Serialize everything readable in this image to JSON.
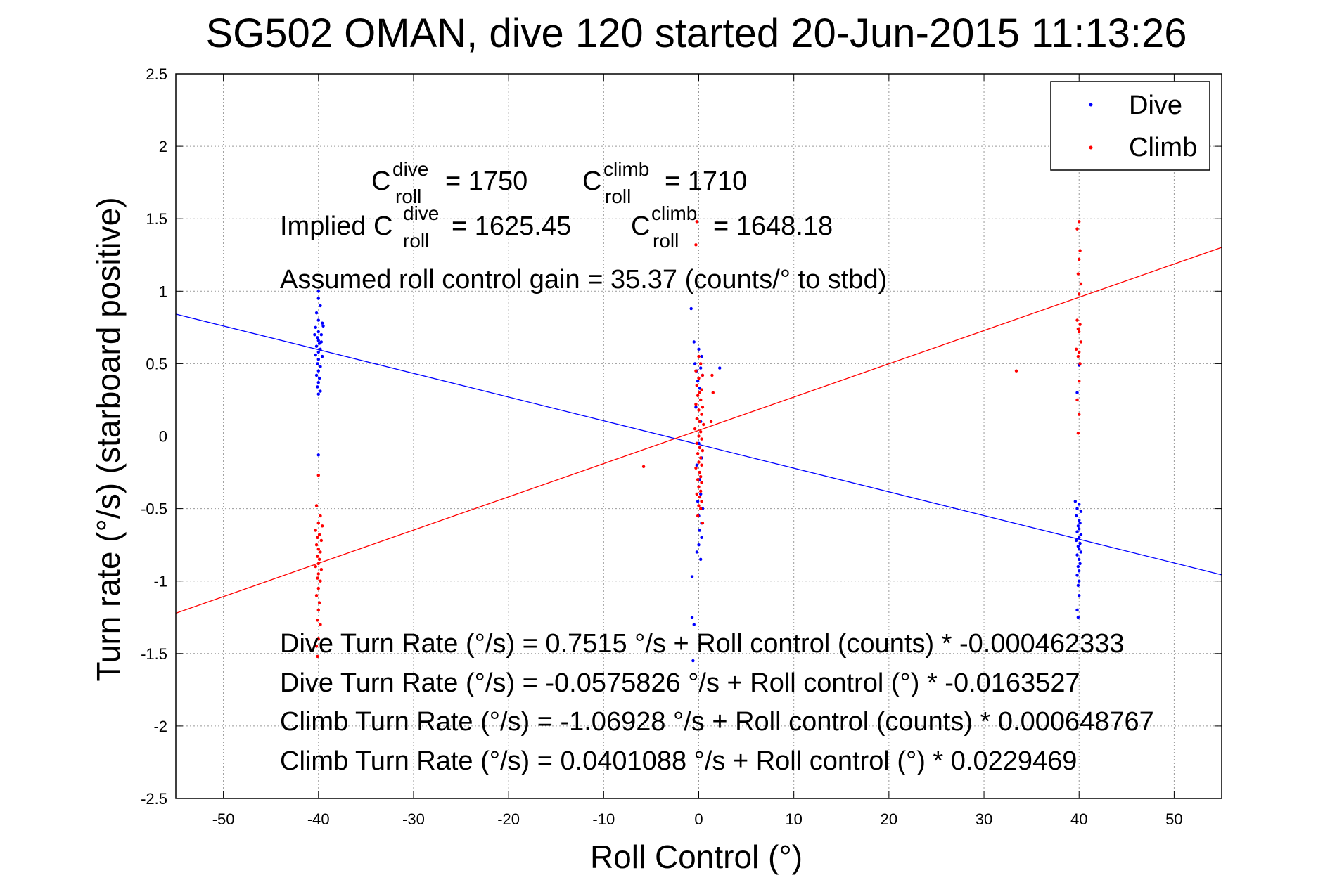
{
  "chart_data": {
    "type": "scatter",
    "title": "SG502 OMAN, dive 120 started 20-Jun-2015 11:13:26",
    "xlabel": "Roll Control (°)",
    "ylabel": "Turn rate (°/s) (starboard positive)",
    "xlim": [
      -55,
      55
    ],
    "ylim": [
      -2.5,
      2.5
    ],
    "xticks": [
      -50,
      -40,
      -30,
      -20,
      -10,
      0,
      10,
      20,
      30,
      40,
      50
    ],
    "yticks": [
      2.5,
      2,
      1.5,
      1,
      0.5,
      0,
      -0.5,
      -1,
      -1.5,
      -2,
      -2.5
    ],
    "grid": true,
    "legend_position": "top-right",
    "colors": {
      "dive": "#0000ff",
      "climb": "#ff0000"
    },
    "series": [
      {
        "name": "Dive",
        "color": "#0000ff",
        "fit": {
          "intercept": -0.0575826,
          "slope": -0.0163527
        },
        "points": [
          [
            -40,
            1.0
          ],
          [
            -40,
            0.95
          ],
          [
            -39.8,
            0.9
          ],
          [
            -40.2,
            0.85
          ],
          [
            -40,
            0.8
          ],
          [
            -39.6,
            0.78
          ],
          [
            -40.3,
            0.75
          ],
          [
            -40,
            0.72
          ],
          [
            -39.7,
            0.7
          ],
          [
            -40.1,
            0.68
          ],
          [
            -40,
            0.66
          ],
          [
            -39.9,
            0.64
          ],
          [
            -40.2,
            0.62
          ],
          [
            -39.8,
            0.6
          ],
          [
            -40,
            0.58
          ],
          [
            -40.3,
            0.56
          ],
          [
            -39.6,
            0.55
          ],
          [
            -40,
            0.53
          ],
          [
            -40.1,
            0.5
          ],
          [
            -39.8,
            0.48
          ],
          [
            -40,
            0.45
          ],
          [
            -40.2,
            0.42
          ],
          [
            -39.9,
            0.4
          ],
          [
            -40,
            0.37
          ],
          [
            -40.1,
            0.34
          ],
          [
            -39.8,
            0.31
          ],
          [
            -40,
            0.29
          ],
          [
            -39.7,
            0.65
          ],
          [
            -40.4,
            0.7
          ],
          [
            -39.5,
            0.76
          ],
          [
            -40,
            -0.13
          ],
          [
            -0.8,
            0.88
          ],
          [
            -0.5,
            0.65
          ],
          [
            0,
            0.6
          ],
          [
            0.3,
            0.55
          ],
          [
            -0.4,
            0.5
          ],
          [
            0.2,
            0.47
          ],
          [
            -0.2,
            0.45
          ],
          [
            0.4,
            0.42
          ],
          [
            -0.1,
            0.38
          ],
          [
            0.1,
            0.33
          ],
          [
            2.2,
            0.47
          ],
          [
            -0.3,
            0.2
          ],
          [
            0.2,
            0.1
          ],
          [
            0,
            -0.05
          ],
          [
            0.3,
            -0.15
          ],
          [
            -0.2,
            -0.2
          ],
          [
            0.1,
            -0.3
          ],
          [
            0.2,
            -0.4
          ],
          [
            -0.1,
            -0.45
          ],
          [
            0.4,
            -0.5
          ],
          [
            0,
            -0.55
          ],
          [
            0.3,
            -0.6
          ],
          [
            0.1,
            -0.65
          ],
          [
            0.3,
            -0.7
          ],
          [
            0,
            -0.75
          ],
          [
            -0.2,
            -0.8
          ],
          [
            0.2,
            -0.85
          ],
          [
            -0.7,
            -0.97
          ],
          [
            -0.7,
            -1.25
          ],
          [
            -0.5,
            -1.3
          ],
          [
            -0.6,
            -1.55
          ],
          [
            40,
            0.49
          ],
          [
            39.8,
            0.3
          ],
          [
            39.6,
            -0.45
          ],
          [
            40,
            -0.47
          ],
          [
            39.8,
            -0.5
          ],
          [
            40.2,
            -0.52
          ],
          [
            39.7,
            -0.55
          ],
          [
            40,
            -0.58
          ],
          [
            40.1,
            -0.6
          ],
          [
            39.9,
            -0.62
          ],
          [
            40,
            -0.64
          ],
          [
            39.8,
            -0.66
          ],
          [
            40.2,
            -0.68
          ],
          [
            40,
            -0.7
          ],
          [
            39.7,
            -0.72
          ],
          [
            40.1,
            -0.74
          ],
          [
            39.9,
            -0.76
          ],
          [
            40,
            -0.78
          ],
          [
            40.2,
            -0.8
          ],
          [
            39.8,
            -0.82
          ],
          [
            40,
            -0.85
          ],
          [
            40.1,
            -0.88
          ],
          [
            39.9,
            -0.9
          ],
          [
            40,
            -0.93
          ],
          [
            39.8,
            -0.96
          ],
          [
            40,
            -1.0
          ],
          [
            39.9,
            -1.03
          ],
          [
            40,
            -1.1
          ],
          [
            39.8,
            -1.2
          ],
          [
            39.9,
            -1.25
          ]
        ]
      },
      {
        "name": "Climb",
        "color": "#ff0000",
        "fit": {
          "intercept": 0.0401088,
          "slope": 0.0229469
        },
        "points": [
          [
            -40,
            -0.27
          ],
          [
            -40.2,
            -0.48
          ],
          [
            -39.8,
            -0.55
          ],
          [
            -40,
            -0.6
          ],
          [
            -39.6,
            -0.62
          ],
          [
            -40.3,
            -0.65
          ],
          [
            -39.9,
            -0.68
          ],
          [
            -40.1,
            -0.7
          ],
          [
            -39.7,
            -0.72
          ],
          [
            -40.2,
            -0.75
          ],
          [
            -40,
            -0.78
          ],
          [
            -39.8,
            -0.8
          ],
          [
            -40.1,
            -0.83
          ],
          [
            -39.9,
            -0.85
          ],
          [
            -40,
            -0.88
          ],
          [
            -40.3,
            -0.9
          ],
          [
            -39.7,
            -0.92
          ],
          [
            -40,
            -0.95
          ],
          [
            -40.1,
            -0.98
          ],
          [
            -39.8,
            -1.0
          ],
          [
            -40,
            -1.05
          ],
          [
            -40.2,
            -1.1
          ],
          [
            -39.9,
            -1.15
          ],
          [
            -40,
            -1.2
          ],
          [
            -40.1,
            -1.27
          ],
          [
            -39.8,
            -1.3
          ],
          [
            -40,
            -1.4
          ],
          [
            -40.2,
            -1.45
          ],
          [
            -40.1,
            -1.52
          ],
          [
            -5.8,
            -0.21
          ],
          [
            -0.2,
            1.48
          ],
          [
            -0.3,
            1.32
          ],
          [
            0,
            0.55
          ],
          [
            0.2,
            0.5
          ],
          [
            -0.3,
            0.45
          ],
          [
            0.4,
            0.42
          ],
          [
            0,
            0.4
          ],
          [
            -0.2,
            0.35
          ],
          [
            0.3,
            0.32
          ],
          [
            0.1,
            0.3
          ],
          [
            1.4,
            0.42
          ],
          [
            1.5,
            0.3
          ],
          [
            1.3,
            0.1
          ],
          [
            -0.1,
            0.28
          ],
          [
            0.2,
            0.25
          ],
          [
            -0.3,
            0.22
          ],
          [
            0.4,
            0.2
          ],
          [
            0,
            0.18
          ],
          [
            0.3,
            0.15
          ],
          [
            -0.2,
            0.12
          ],
          [
            0.1,
            0.1
          ],
          [
            0.5,
            0.08
          ],
          [
            -0.4,
            0.05
          ],
          [
            0.2,
            0.03
          ],
          [
            0,
            0.0
          ],
          [
            0.3,
            -0.02
          ],
          [
            -0.2,
            -0.05
          ],
          [
            0.1,
            -0.08
          ],
          [
            0.4,
            -0.1
          ],
          [
            -0.1,
            -0.12
          ],
          [
            0.2,
            -0.15
          ],
          [
            0,
            -0.18
          ],
          [
            0.3,
            -0.2
          ],
          [
            -0.3,
            -0.22
          ],
          [
            0.1,
            -0.25
          ],
          [
            0.2,
            -0.28
          ],
          [
            -0.1,
            -0.3
          ],
          [
            0.3,
            -0.32
          ],
          [
            0,
            -0.35
          ],
          [
            0.2,
            -0.38
          ],
          [
            -0.2,
            -0.4
          ],
          [
            0.1,
            -0.42
          ],
          [
            0.3,
            -0.45
          ],
          [
            0,
            -0.48
          ],
          [
            0.2,
            -0.5
          ],
          [
            -0.1,
            -0.55
          ],
          [
            0.4,
            -0.6
          ],
          [
            33.4,
            0.45
          ],
          [
            40,
            1.48
          ],
          [
            39.8,
            1.43
          ],
          [
            40.1,
            1.28
          ],
          [
            40,
            1.22
          ],
          [
            39.9,
            1.12
          ],
          [
            40.2,
            1.05
          ],
          [
            40,
            0.98
          ],
          [
            39.8,
            0.8
          ],
          [
            40.1,
            0.77
          ],
          [
            39.9,
            0.74
          ],
          [
            40,
            0.72
          ],
          [
            40.2,
            0.65
          ],
          [
            39.7,
            0.6
          ],
          [
            40,
            0.58
          ],
          [
            39.9,
            0.55
          ],
          [
            40.1,
            0.5
          ],
          [
            40,
            0.38
          ],
          [
            39.8,
            0.25
          ],
          [
            40,
            0.15
          ],
          [
            39.9,
            0.02
          ]
        ]
      }
    ],
    "legend": [
      "Dive",
      "Climb"
    ],
    "annotations": {
      "c_roll_dive": {
        "base": "C",
        "sup": "dive",
        "sub": "roll",
        "value": "= 1750"
      },
      "c_roll_climb": {
        "base": "C",
        "sup": "climb",
        "sub": "roll",
        "value": "= 1710"
      },
      "implied_prefix": "Implied C",
      "implied_dive": {
        "sup": "dive",
        "sub": "roll",
        "value": "= 1625.45"
      },
      "implied_climb": {
        "base": "C",
        "sup": "climb",
        "sub": "roll",
        "value": "= 1648.18"
      },
      "gain": "Assumed roll control gain = 35.37 (counts/° to stbd)",
      "eq1": "Dive Turn Rate (°/s) = 0.7515 °/s + Roll control (counts) * -0.000462333",
      "eq2": "Dive Turn Rate (°/s) = -0.0575826 °/s + Roll control (°) * -0.0163527",
      "eq3": "Climb Turn Rate (°/s) = -1.06928 °/s + Roll control (counts) * 0.000648767",
      "eq4": "Climb Turn Rate (°/s) = 0.0401088 °/s + Roll control (°) * 0.0229469"
    }
  }
}
